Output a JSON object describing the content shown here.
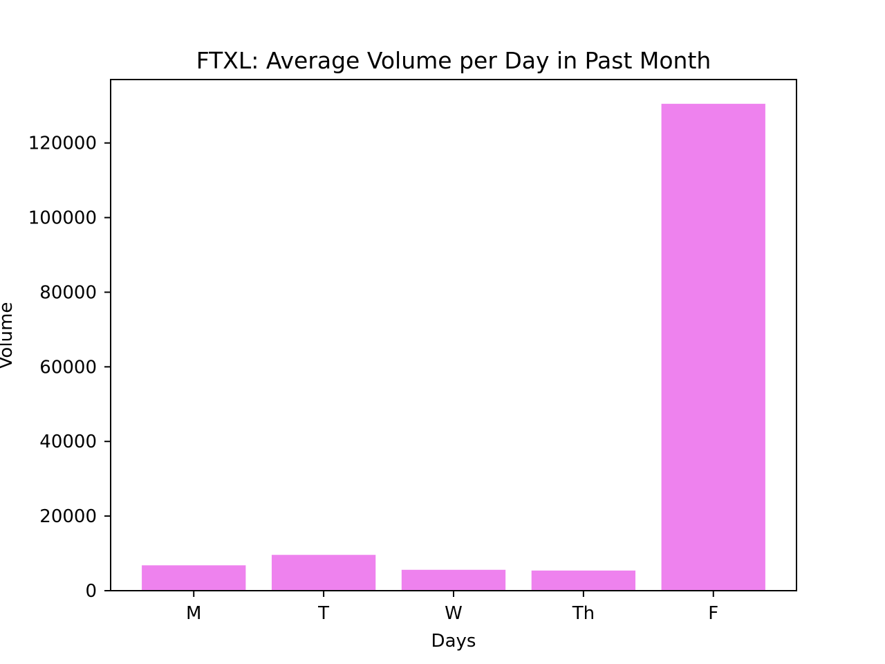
{
  "chart_data": {
    "type": "bar",
    "title": "FTXL: Average Volume per Day in Past Month",
    "xlabel": "Days",
    "ylabel": "Volume",
    "categories": [
      "M",
      "T",
      "W",
      "Th",
      "F"
    ],
    "values": [
      6800,
      9600,
      5600,
      5400,
      130500
    ],
    "ylim": [
      0,
      137000
    ],
    "yticks": [
      0,
      20000,
      40000,
      60000,
      80000,
      100000,
      120000
    ],
    "ytick_labels": [
      "0",
      "20000",
      "40000",
      "60000",
      "80000",
      "100000",
      "120000"
    ],
    "bar_color": "#ee82ee",
    "grid": false,
    "legend": "none"
  }
}
